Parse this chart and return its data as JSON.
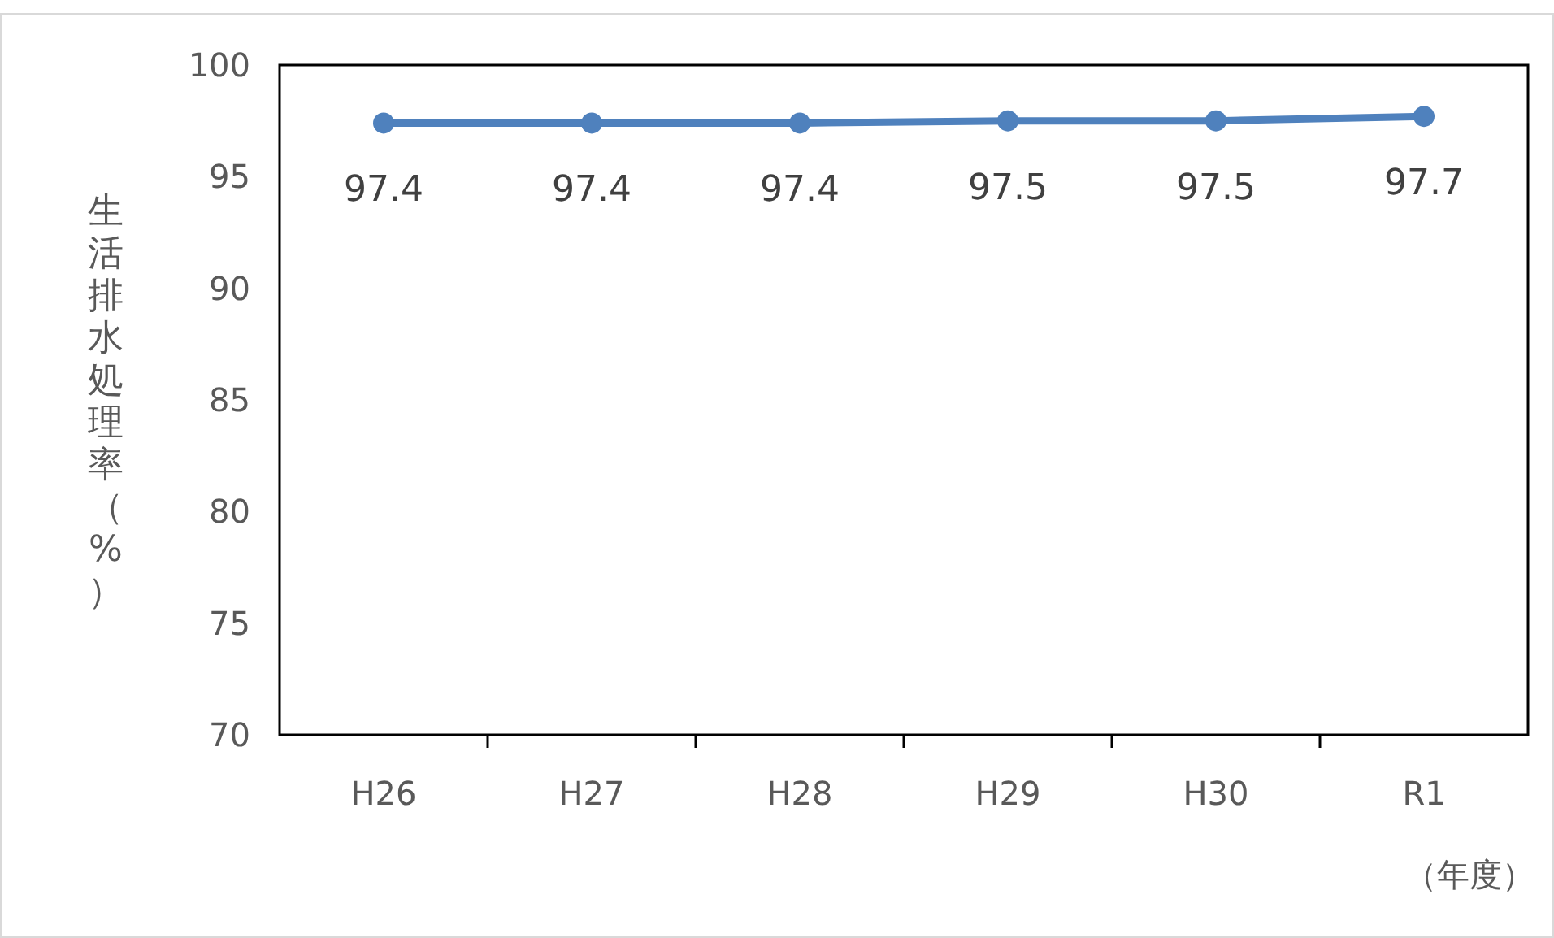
{
  "chart_data": {
    "type": "line",
    "ylabel": "生活排水処理率（%）",
    "xlabel": "（年度）",
    "categories": [
      "H26",
      "H27",
      "H28",
      "H29",
      "H30",
      "R1"
    ],
    "series": [
      {
        "color": "#4f81bd",
        "values": [
          97.4,
          97.4,
          97.4,
          97.5,
          97.5,
          97.7
        ]
      }
    ],
    "ylim": [
      70,
      100
    ],
    "yticks": [
      70,
      75,
      80,
      85,
      90,
      95,
      100
    ],
    "marker": "circle",
    "data_labels": true,
    "grid": false
  }
}
